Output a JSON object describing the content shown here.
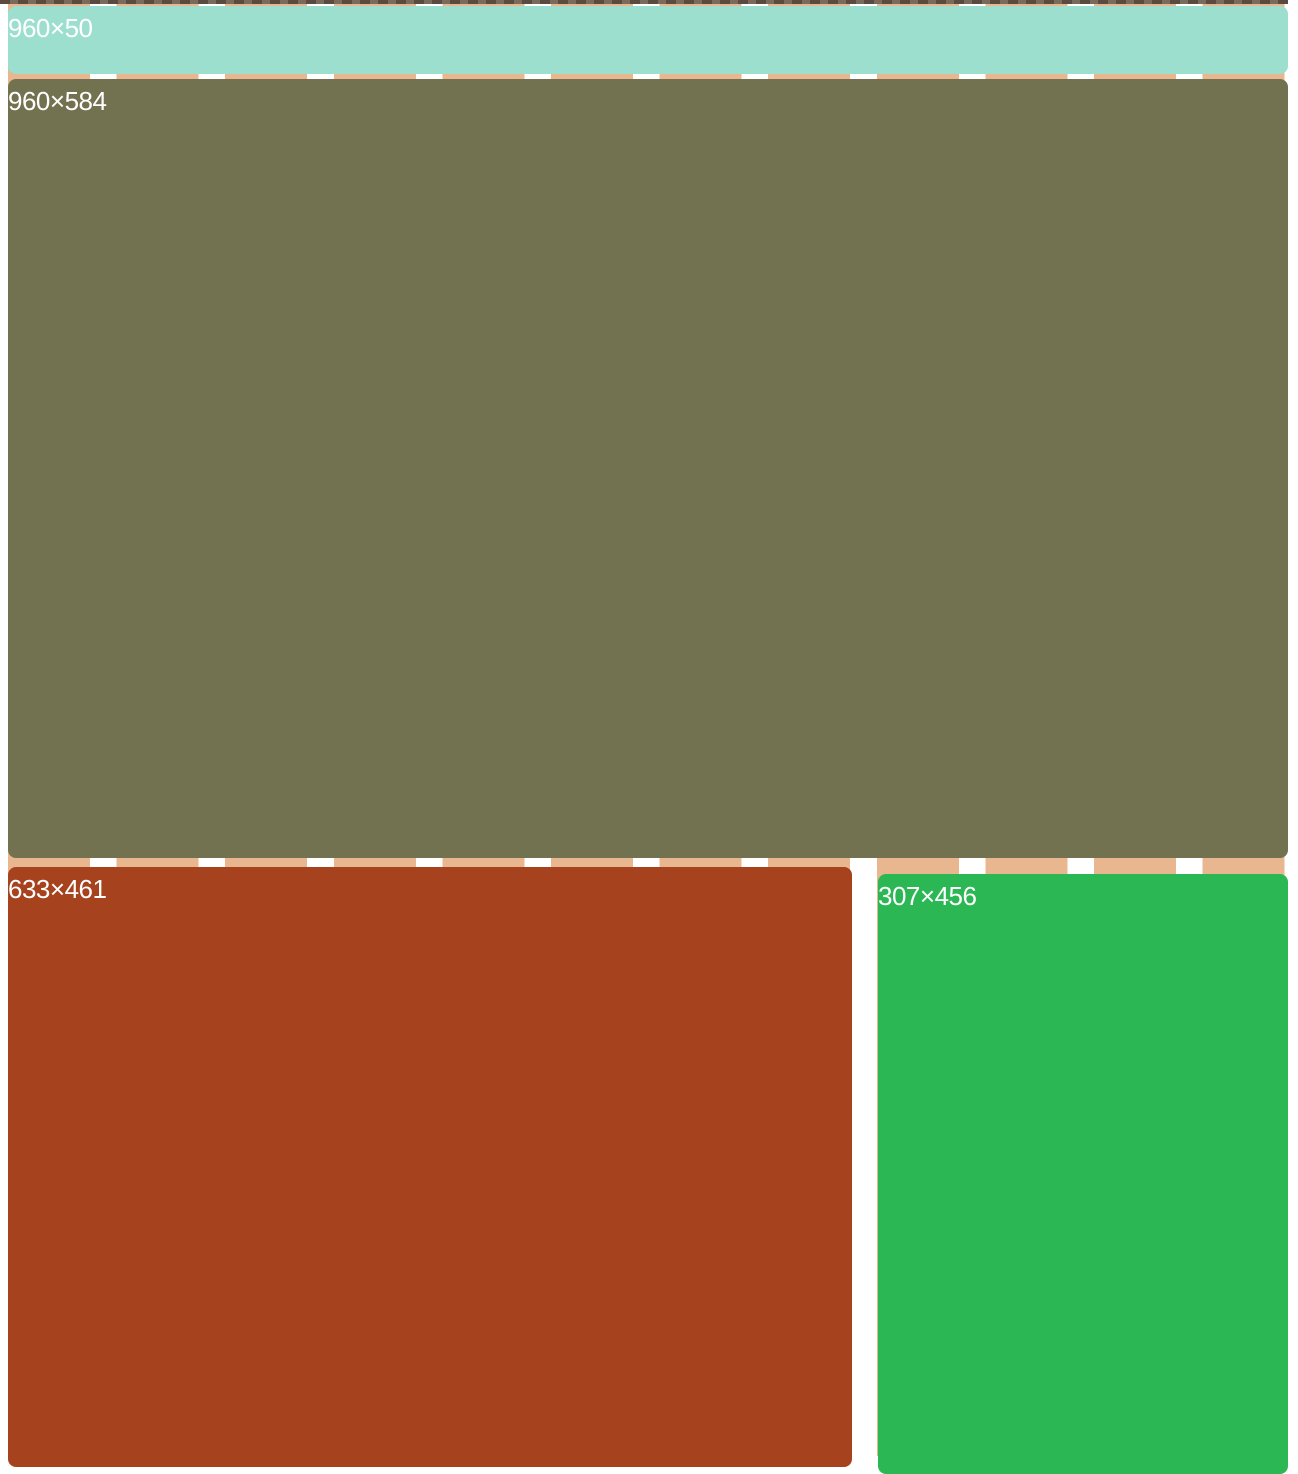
{
  "colors": {
    "grid_column": "#e8b68f",
    "header": "#9ddfcf",
    "main": "#727250",
    "left_panel": "#a6421e",
    "right_panel": "#2bb754",
    "label_text": "#ffffff"
  },
  "blocks": {
    "header": {
      "label": "960×50"
    },
    "main": {
      "label": "960×584"
    },
    "left": {
      "label": "633×461"
    },
    "right": {
      "label": "307×456"
    }
  }
}
